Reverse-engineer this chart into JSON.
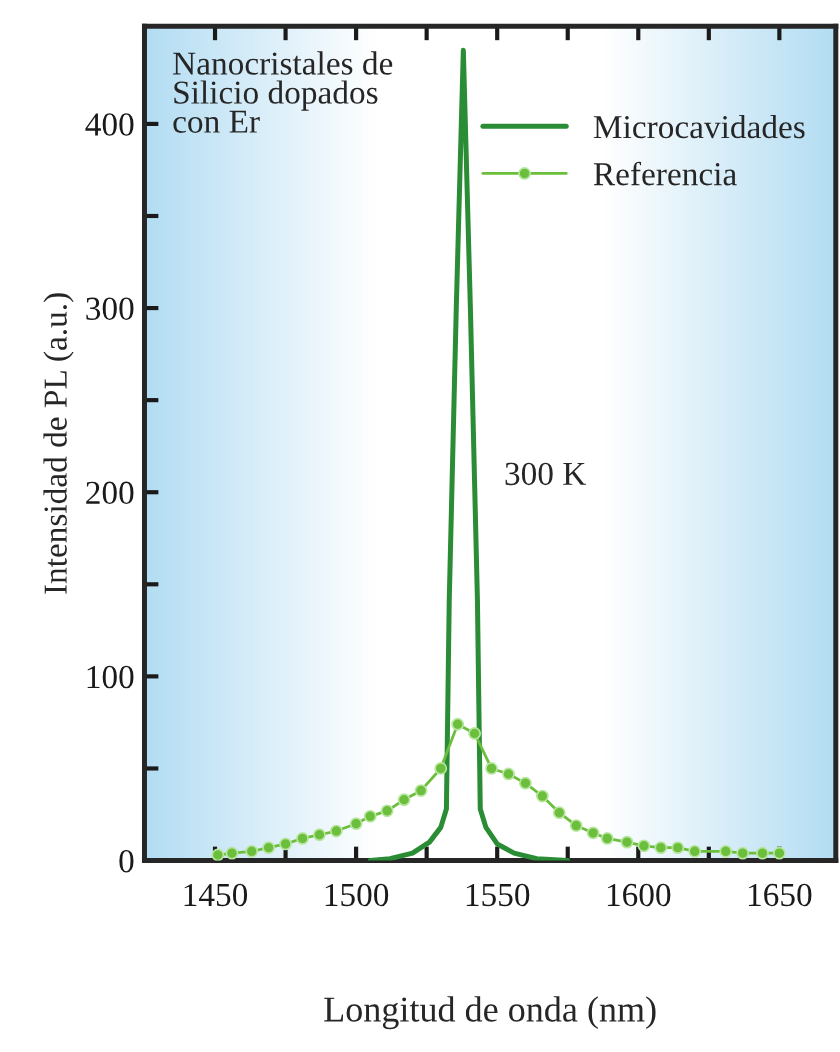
{
  "chart_data": {
    "type": "line",
    "xlabel": "Longitud de onda (nm)",
    "ylabel": "Intensidad de PL (a.u.)",
    "annotations": [
      "Nanocristales de\nSilicio dopados\ncon Er",
      "300 K"
    ],
    "xlim": [
      1425,
      1670
    ],
    "ylim": [
      0,
      453
    ],
    "xticks": [
      1450,
      {
        "value": 1475,
        "label": null
      },
      1500,
      {
        "value": 1525,
        "label": null
      },
      1550,
      {
        "value": 1575,
        "label": null
      },
      1600,
      {
        "value": 1625,
        "label": null
      },
      1650
    ],
    "yticks": [
      0,
      {
        "value": 50,
        "label": null
      },
      100,
      {
        "value": 150,
        "label": null
      },
      200,
      {
        "value": 250,
        "label": null
      },
      300,
      {
        "value": 350,
        "label": null
      },
      400
    ],
    "grid": false,
    "legend": "top right",
    "series": [
      {
        "name": "Microcavidades",
        "color": "#2a8c34",
        "marker": "none",
        "x": [
          1505,
          1512,
          1520,
          1526,
          1530,
          1532,
          1533,
          1535.5,
          1538,
          1540.5,
          1543,
          1544,
          1546,
          1550,
          1556,
          1564,
          1575
        ],
        "values": [
          0,
          1,
          4,
          10,
          18,
          28,
          141,
          300,
          440,
          300,
          141,
          28,
          18,
          9,
          4,
          1,
          0
        ]
      },
      {
        "name": "Referencia",
        "color": "#6cbf3c",
        "marker": "circle",
        "x": [
          1451,
          1456,
          1463,
          1469,
          1475,
          1481,
          1487,
          1493,
          1500,
          1505,
          1511,
          1517,
          1523,
          1530,
          1536,
          1542,
          1548,
          1554,
          1560,
          1566,
          1572,
          1578,
          1584,
          1589,
          1596,
          1602,
          1608,
          1614,
          1620,
          1631,
          1637,
          1644,
          1650
        ],
        "values": [
          3,
          4,
          5,
          7,
          9,
          12,
          14,
          16,
          20,
          24,
          27,
          33,
          38,
          50,
          74,
          69,
          50,
          47,
          42,
          35,
          26,
          19,
          15,
          12,
          10,
          8,
          7,
          7,
          5,
          5,
          4,
          4,
          4
        ]
      }
    ]
  }
}
